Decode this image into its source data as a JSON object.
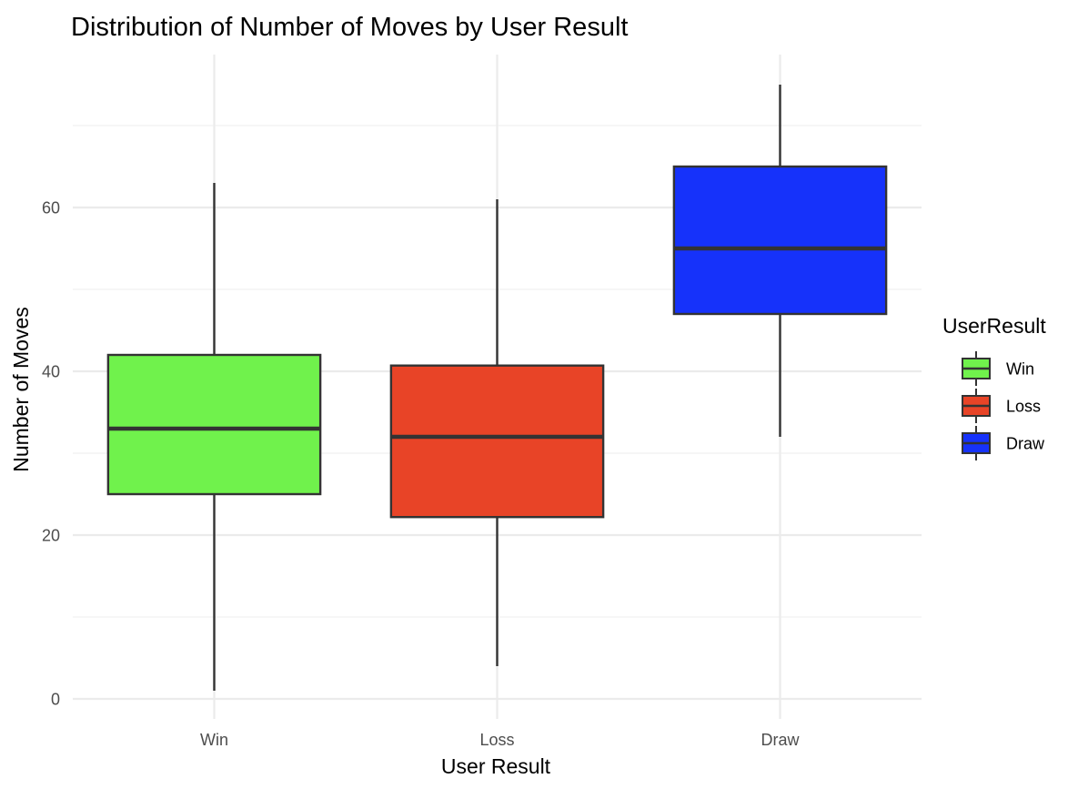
{
  "chart_data": {
    "type": "boxplot",
    "title": "Distribution of Number of Moves by User Result",
    "xlabel": "User Result",
    "ylabel": "Number of Moves",
    "ylim": [
      -2,
      77
    ],
    "y_ticks": [
      0,
      20,
      40,
      60
    ],
    "grid": true,
    "legend": {
      "title": "UserResult",
      "position": "right",
      "entries": [
        "Win",
        "Loss",
        "Draw"
      ]
    },
    "categories": [
      "Win",
      "Loss",
      "Draw"
    ],
    "series": [
      {
        "name": "Win",
        "whisker_low": 1,
        "q1": 25,
        "median": 33,
        "q3": 42,
        "whisker_high": 63,
        "color": "#70f24c"
      },
      {
        "name": "Loss",
        "whisker_low": 4,
        "q1": 22.2,
        "median": 32,
        "q3": 40.7,
        "whisker_high": 61,
        "color": "#e84427"
      },
      {
        "name": "Draw",
        "whisker_low": 32,
        "q1": 47,
        "median": 55,
        "q3": 65,
        "whisker_high": 75,
        "color": "#1632fa"
      }
    ]
  },
  "colors": {
    "grid_major": "#ebebeb",
    "grid_minor": "#f4f4f4",
    "box_outline": "#333333"
  }
}
